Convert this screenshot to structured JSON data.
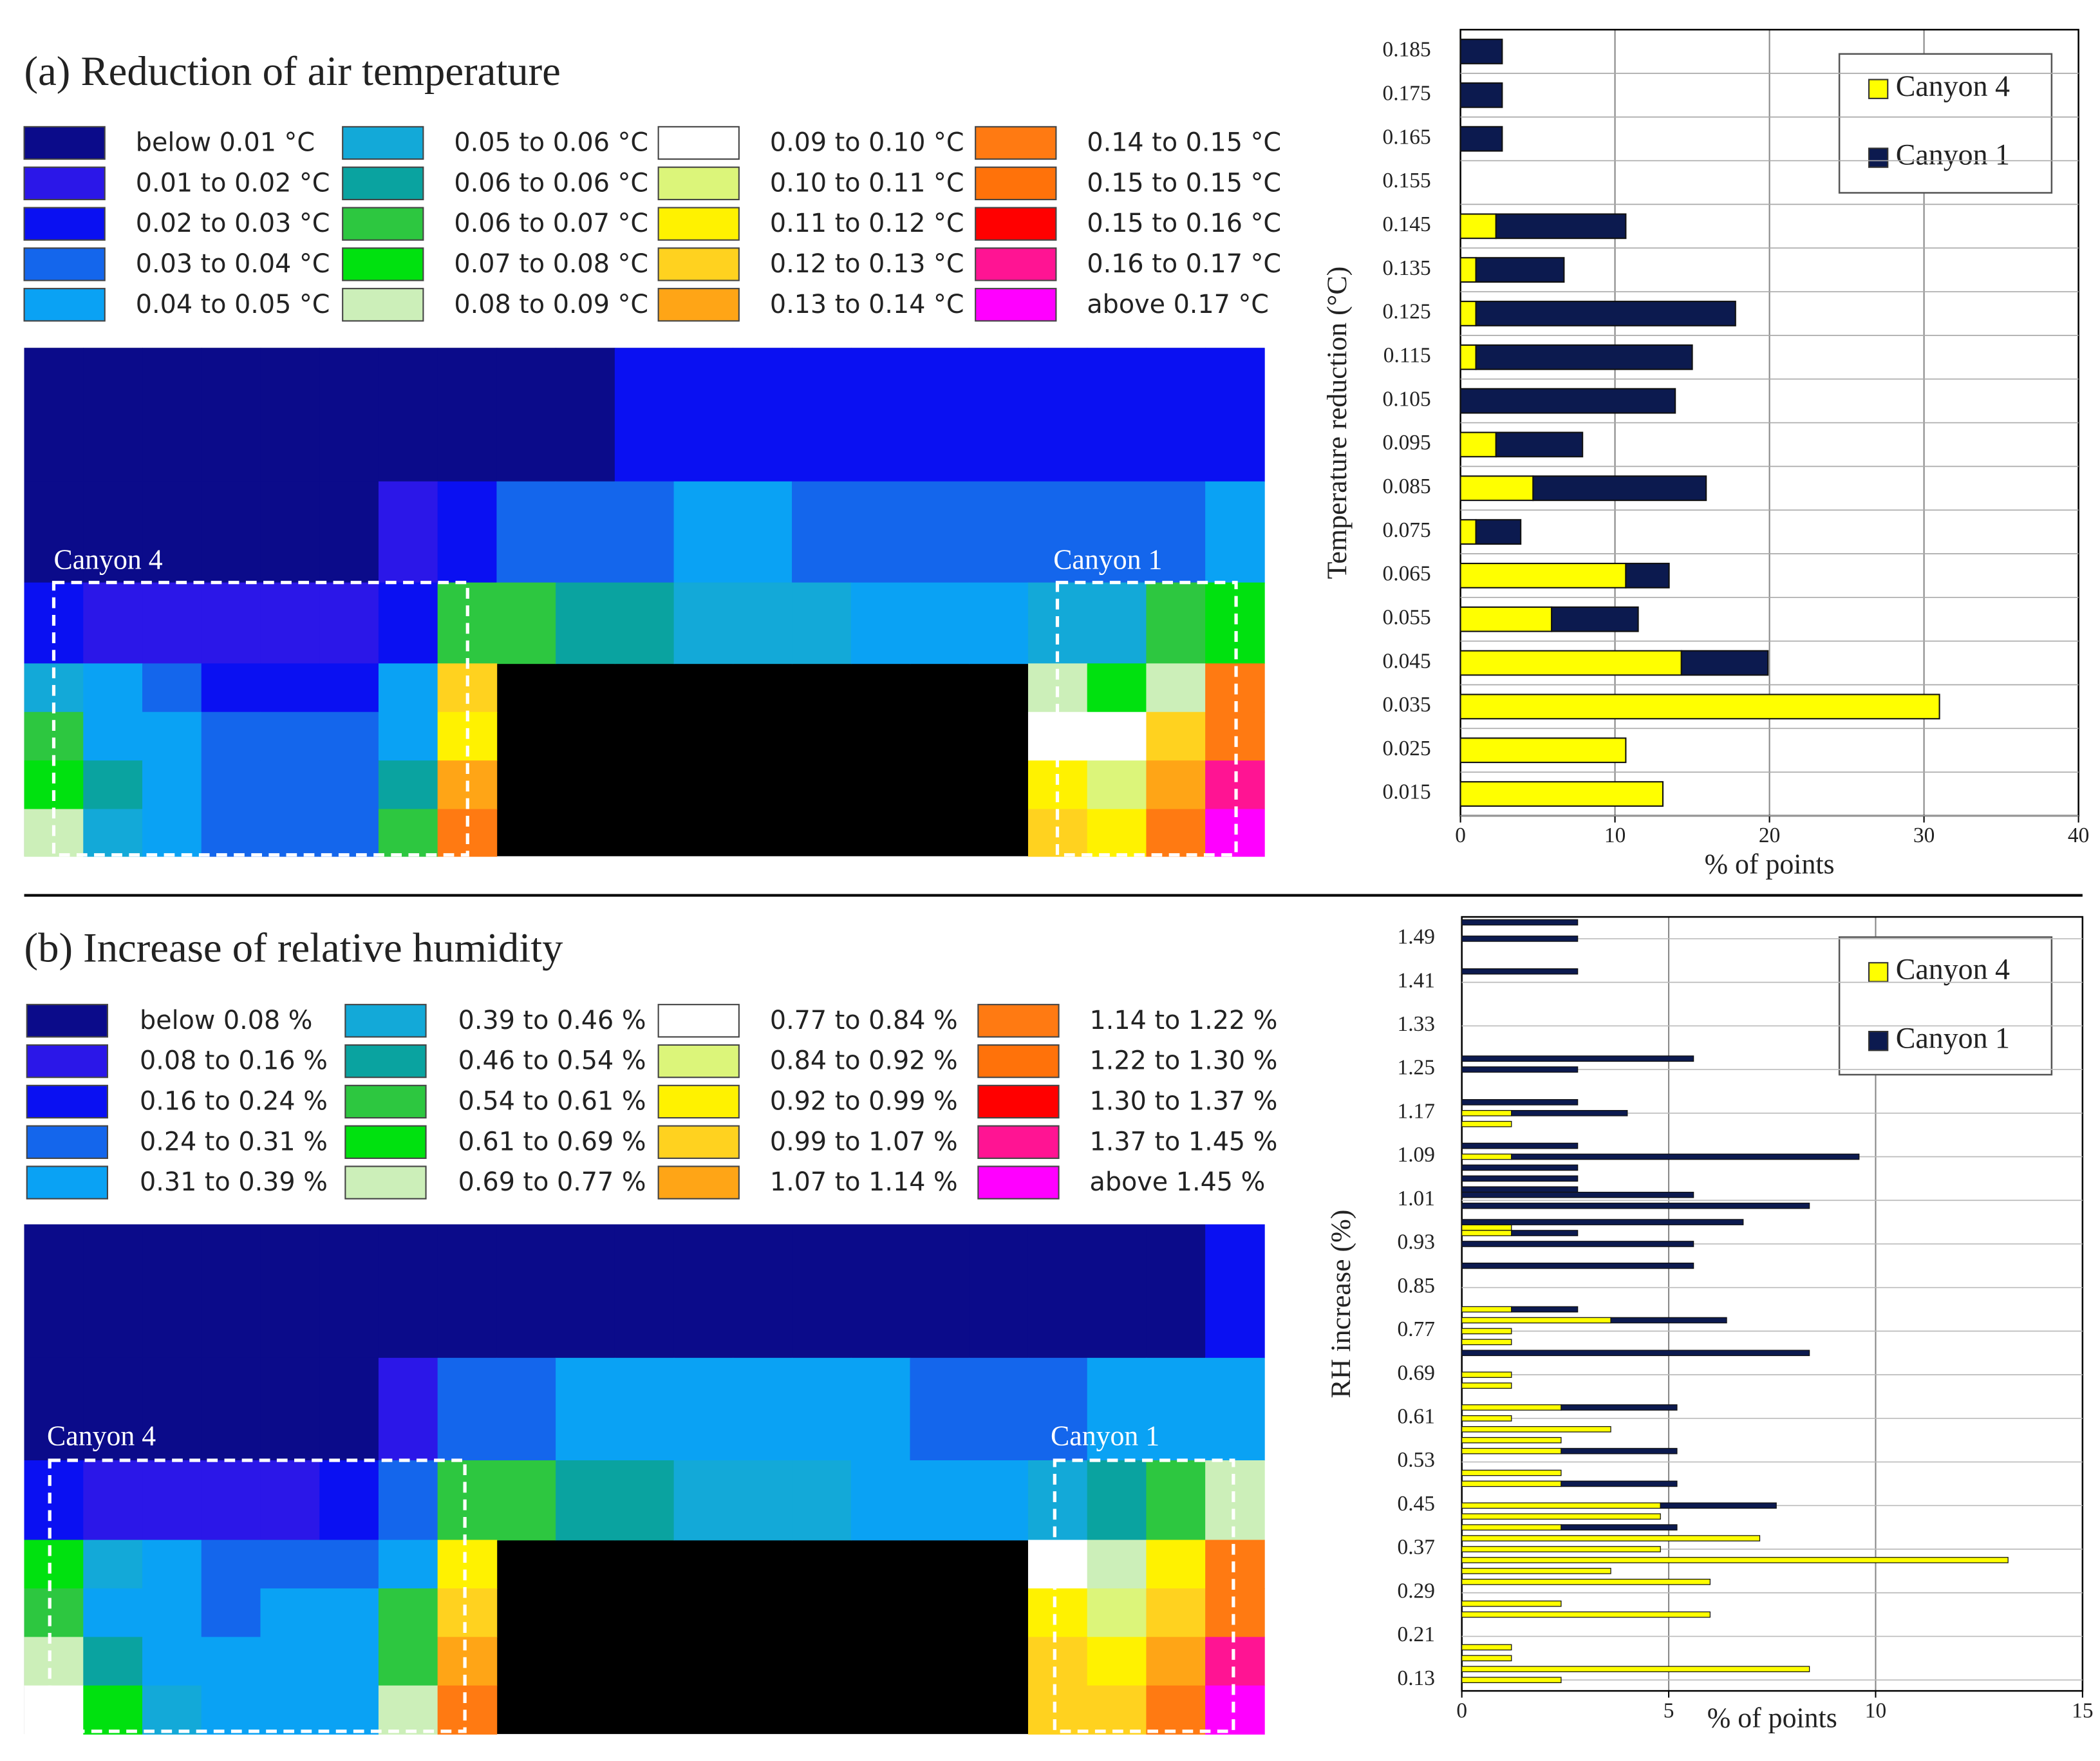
{
  "chart_data": [
    {
      "type": "heatmap",
      "title": "(a) Reduction of air temperature",
      "legend_labels": [
        "below 0.01 °C",
        "0.01 to 0.02 °C",
        "0.02 to 0.03 °C",
        "0.03 to 0.04 °C",
        "0.04 to 0.05 °C",
        "0.05 to 0.06 °C",
        "0.06 to 0.06 °C",
        "0.06 to 0.07 °C",
        "0.07 to 0.08 °C",
        "0.08 to 0.09 °C",
        "0.09 to 0.10 °C",
        "0.10 to 0.11 °C",
        "0.11 to 0.12 °C",
        "0.12 to 0.13 °C",
        "0.13 to 0.14 °C",
        "0.14 to 0.15 °C",
        "0.15 to 0.15 °C",
        "0.15 to 0.16 °C",
        "0.16 to 0.17 °C",
        "above 0.17 °C"
      ],
      "colors": [
        "#0b0b8a",
        "#2b17e8",
        "#0a10f2",
        "#1466ec",
        "#0aa2f4",
        "#13a9d8",
        "#0aa3a0",
        "#2dc740",
        "#00e10f",
        "#ccefb9",
        "#ffffff",
        "#dcf57a",
        "#fff200",
        "#ffd21f",
        "#ffa516",
        "#ff7a12",
        "#ff720a",
        "#ff0000",
        "#ff1493",
        "#ff00ff"
      ],
      "annotations": [
        "Canyon 4",
        "Canyon 1"
      ],
      "values": [
        [
          0,
          0,
          0,
          0,
          0,
          0,
          0,
          0,
          0,
          0,
          2,
          2,
          2,
          2,
          2,
          2,
          2,
          2,
          2,
          2,
          2
        ],
        [
          0,
          0,
          0,
          0,
          0,
          0,
          1,
          2,
          3,
          3,
          3,
          4,
          4,
          3,
          3,
          3,
          3,
          3,
          3,
          3,
          4
        ],
        [
          2,
          1,
          1,
          1,
          1,
          1,
          2,
          7,
          7,
          6,
          6,
          5,
          5,
          5,
          4,
          4,
          4,
          5,
          5,
          7,
          8
        ],
        [
          5,
          4,
          3,
          2,
          2,
          2,
          4,
          13,
          null,
          null,
          null,
          null,
          null,
          null,
          null,
          null,
          null,
          9,
          8,
          9,
          15
        ],
        [
          7,
          4,
          4,
          3,
          3,
          3,
          4,
          12,
          null,
          null,
          null,
          null,
          null,
          null,
          null,
          null,
          null,
          10,
          10,
          13,
          15
        ],
        [
          8,
          6,
          4,
          3,
          3,
          3,
          6,
          14,
          null,
          null,
          null,
          null,
          null,
          null,
          null,
          null,
          null,
          12,
          11,
          14,
          18
        ],
        [
          9,
          5,
          4,
          3,
          3,
          3,
          7,
          15,
          null,
          null,
          null,
          null,
          null,
          null,
          null,
          null,
          null,
          13,
          12,
          15,
          19
        ]
      ]
    },
    {
      "type": "heatmap",
      "title": "(b) Increase of relative humidity",
      "legend_labels": [
        "below 0.08 %",
        "0.08 to 0.16 %",
        "0.16 to 0.24 %",
        "0.24 to 0.31 %",
        "0.31 to 0.39 %",
        "0.39 to 0.46 %",
        "0.46 to 0.54 %",
        "0.54 to 0.61 %",
        "0.61 to 0.69 %",
        "0.69 to 0.77 %",
        "0.77 to 0.84 %",
        "0.84 to 0.92 %",
        "0.92 to 0.99 %",
        "0.99 to 1.07 %",
        "1.07 to 1.14 %",
        "1.14 to 1.22 %",
        "1.22 to 1.30 %",
        "1.30 to 1.37 %",
        "1.37 to 1.45 %",
        "above 1.45 %"
      ],
      "colors": [
        "#0b0b8a",
        "#2b17e8",
        "#0a10f2",
        "#1466ec",
        "#0aa2f4",
        "#13a9d8",
        "#0aa3a0",
        "#2dc740",
        "#00e10f",
        "#ccefb9",
        "#ffffff",
        "#dcf57a",
        "#fff200",
        "#ffd21f",
        "#ffa516",
        "#ff7a12",
        "#ff720a",
        "#ff0000",
        "#ff1493",
        "#ff00ff"
      ],
      "annotations": [
        "Canyon 4",
        "Canyon 1"
      ],
      "values": [
        [
          0,
          0,
          0,
          0,
          0,
          0,
          0,
          0,
          0,
          0,
          0,
          0,
          0,
          0,
          0,
          0,
          0,
          0,
          0,
          0,
          2
        ],
        [
          0,
          0,
          0,
          0,
          0,
          0,
          1,
          3,
          3,
          4,
          4,
          4,
          4,
          4,
          4,
          3,
          3,
          3,
          4,
          4,
          4
        ],
        [
          2,
          1,
          1,
          1,
          1,
          2,
          3,
          7,
          7,
          6,
          6,
          5,
          5,
          5,
          4,
          4,
          4,
          5,
          6,
          7,
          9
        ],
        [
          8,
          5,
          4,
          3,
          3,
          3,
          4,
          12,
          null,
          null,
          null,
          null,
          null,
          null,
          null,
          null,
          null,
          10,
          9,
          12,
          15
        ],
        [
          7,
          4,
          4,
          3,
          4,
          4,
          7,
          13,
          null,
          null,
          null,
          null,
          null,
          null,
          null,
          null,
          null,
          12,
          11,
          13,
          15
        ],
        [
          9,
          6,
          4,
          4,
          4,
          4,
          7,
          14,
          null,
          null,
          null,
          null,
          null,
          null,
          null,
          null,
          null,
          13,
          12,
          14,
          18
        ],
        [
          10,
          8,
          5,
          4,
          4,
          4,
          9,
          15,
          null,
          null,
          null,
          null,
          null,
          null,
          null,
          null,
          null,
          13,
          13,
          15,
          19
        ]
      ]
    },
    {
      "type": "bar",
      "orientation": "horizontal",
      "stacked": true,
      "x_label": "% of points",
      "y_label": "Temperature reduction (°C)",
      "categories": [
        "0.015",
        "0.025",
        "0.035",
        "0.045",
        "0.055",
        "0.065",
        "0.075",
        "0.085",
        "0.095",
        "0.105",
        "0.115",
        "0.125",
        "0.135",
        "0.145",
        "0.155",
        "0.165",
        "0.175",
        "0.185"
      ],
      "series": [
        {
          "name": "Canyon 4",
          "color": "#ffff00",
          "values": [
            13.1,
            10.7,
            31.0,
            14.3,
            5.9,
            10.7,
            1.0,
            4.7,
            2.3,
            0,
            1.0,
            1.0,
            1.0,
            2.3,
            0,
            0,
            0,
            0
          ]
        },
        {
          "name": "Canyon 1",
          "color": "#0c1a4f",
          "values": [
            0,
            0,
            0,
            5.6,
            5.6,
            2.8,
            2.9,
            11.2,
            5.6,
            13.9,
            14.0,
            16.8,
            5.7,
            8.4,
            0,
            2.7,
            2.7,
            2.7
          ]
        }
      ],
      "xlim": [
        0,
        40
      ],
      "xticks": [
        0,
        10,
        20,
        30,
        40
      ],
      "grid": true,
      "legend": "upper right"
    },
    {
      "type": "hbar_numeric",
      "stacked": true,
      "x_label": "% of points",
      "y_label": "RH increase (%)",
      "y": [
        0.13,
        0.15,
        0.17,
        0.19,
        0.25,
        0.27,
        0.31,
        0.33,
        0.35,
        0.37,
        0.39,
        0.41,
        0.43,
        0.45,
        0.49,
        0.51,
        0.55,
        0.57,
        0.59,
        0.61,
        0.63,
        0.67,
        0.69,
        0.73,
        0.75,
        0.77,
        0.79,
        0.81,
        0.89,
        0.93,
        0.95,
        0.96,
        0.97,
        1.0,
        1.02,
        1.03,
        1.05,
        1.07,
        1.09,
        1.11,
        1.15,
        1.17,
        1.19,
        1.25,
        1.27,
        1.43,
        1.49,
        1.52
      ],
      "series": [
        {
          "name": "Canyon 4",
          "color": "#ffff00",
          "values": [
            2.4,
            8.4,
            1.2,
            1.2,
            6.0,
            2.4,
            6.0,
            3.6,
            13.2,
            4.8,
            7.2,
            2.4,
            4.8,
            4.8,
            2.4,
            2.4,
            2.4,
            2.4,
            3.6,
            1.2,
            2.4,
            1.2,
            1.2,
            0,
            1.2,
            1.2,
            3.6,
            1.2,
            0,
            0,
            1.2,
            1.2,
            0,
            0,
            0,
            0,
            0,
            0,
            1.2,
            0,
            1.2,
            1.2,
            0,
            0,
            0,
            0,
            0,
            0
          ]
        },
        {
          "name": "Canyon 1",
          "color": "#0c1a4f",
          "values": [
            0,
            0,
            0,
            0,
            0,
            0,
            0,
            0,
            0,
            0,
            0,
            2.8,
            0,
            2.8,
            2.8,
            0,
            2.8,
            0,
            0,
            0,
            2.8,
            0,
            0,
            8.4,
            0,
            0,
            2.8,
            1.6,
            5.6,
            5.6,
            1.6,
            0,
            6.8,
            8.4,
            5.6,
            2.8,
            2.8,
            2.8,
            8.4,
            2.8,
            0,
            2.8,
            2.8,
            2.8,
            5.6,
            2.8,
            2.8,
            2.8
          ]
        }
      ],
      "xlim": [
        0,
        15
      ],
      "xticks": [
        0,
        5,
        10,
        15
      ],
      "ylim": [
        0.11,
        1.53
      ],
      "yticks": [
        0.13,
        0.21,
        0.29,
        0.37,
        0.45,
        0.53,
        0.61,
        0.69,
        0.77,
        0.85,
        0.93,
        1.01,
        1.09,
        1.17,
        1.25,
        1.33,
        1.41,
        1.49
      ],
      "grid": true,
      "legend": "upper right"
    }
  ]
}
